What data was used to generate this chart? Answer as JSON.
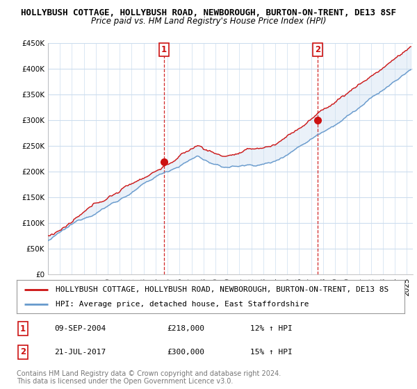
{
  "title": "HOLLYBUSH COTTAGE, HOLLYBUSH ROAD, NEWBOROUGH, BURTON-ON-TRENT, DE13 8SF",
  "subtitle": "Price paid vs. HM Land Registry's House Price Index (HPI)",
  "ylabel_ticks": [
    "£0",
    "£50K",
    "£100K",
    "£150K",
    "£200K",
    "£250K",
    "£300K",
    "£350K",
    "£400K",
    "£450K"
  ],
  "ytick_values": [
    0,
    50000,
    100000,
    150000,
    200000,
    250000,
    300000,
    350000,
    400000,
    450000
  ],
  "ylim": [
    0,
    450000
  ],
  "xlim_start": 1995.0,
  "xlim_end": 2025.5,
  "marker1_x": 2004.69,
  "marker1_y": 218000,
  "marker1_label": "1",
  "marker1_date": "09-SEP-2004",
  "marker1_price": "£218,000",
  "marker1_hpi": "12% ↑ HPI",
  "marker2_x": 2017.55,
  "marker2_y": 300000,
  "marker2_label": "2",
  "marker2_date": "21-JUL-2017",
  "marker2_price": "£300,000",
  "marker2_hpi": "15% ↑ HPI",
  "red_color": "#cc1111",
  "blue_color": "#6699cc",
  "fill_color": "#ccddf0",
  "dashed_marker_color": "#cc1111",
  "background_color": "#ffffff",
  "plot_bg_color": "#ffffff",
  "grid_color": "#ccddee",
  "legend_line1": "HOLLYBUSH COTTAGE, HOLLYBUSH ROAD, NEWBOROUGH, BURTON-ON-TRENT, DE13 8S",
  "legend_line2": "HPI: Average price, detached house, East Staffordshire",
  "footer1": "Contains HM Land Registry data © Crown copyright and database right 2024.",
  "footer2": "This data is licensed under the Open Government Licence v3.0.",
  "title_fontsize": 9,
  "subtitle_fontsize": 8.5,
  "tick_fontsize": 7.5,
  "legend_fontsize": 8,
  "footer_fontsize": 7
}
